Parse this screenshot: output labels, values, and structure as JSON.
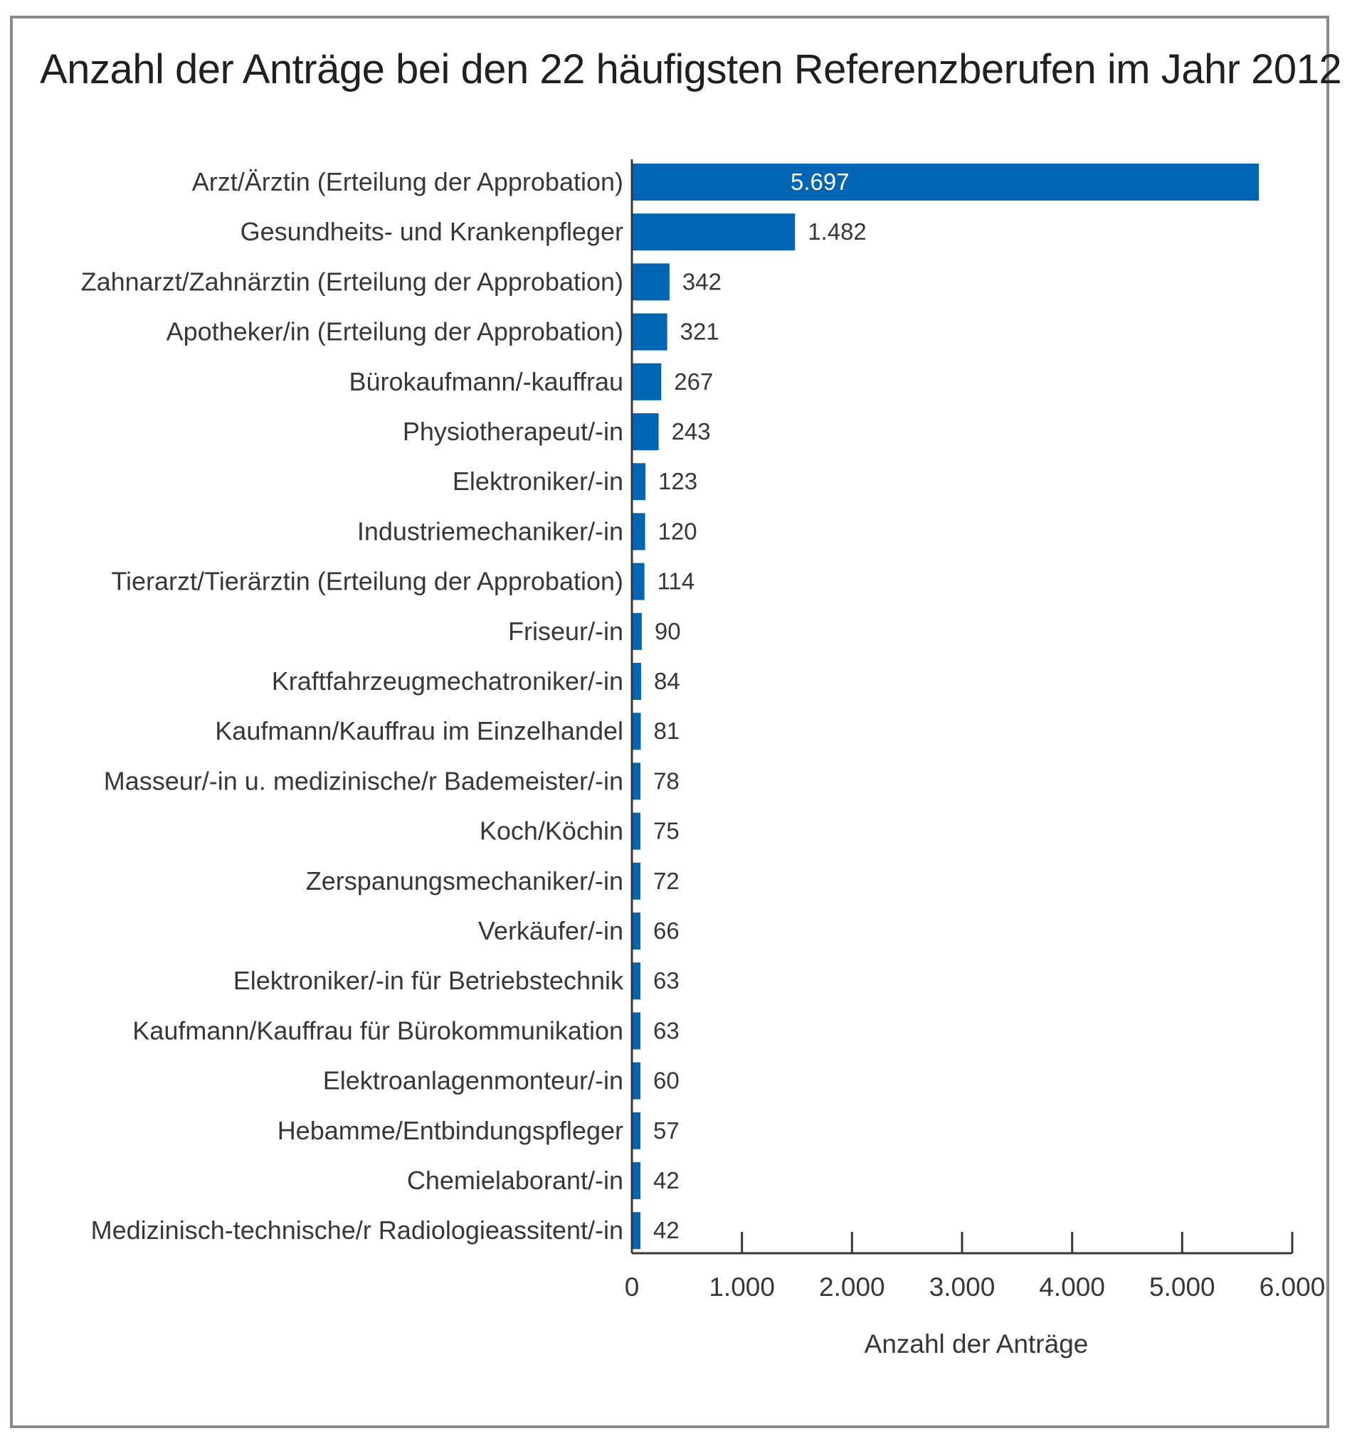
{
  "colors": {
    "bar": "#0066b3",
    "text": "#3a3536",
    "axis": "#3a3536",
    "frame": "#8a8a8a"
  },
  "chart_data": {
    "type": "bar",
    "orientation": "horizontal",
    "title": "Anzahl der Anträge bei den 22 häufigsten Referenzberufen im Jahr 2012",
    "xlabel": "Anzahl der Anträge",
    "ylabel": "",
    "xlim": [
      0,
      6000
    ],
    "ticks": [
      0,
      1000,
      2000,
      3000,
      4000,
      5000,
      6000
    ],
    "tick_labels": [
      "0",
      "1.000",
      "2.000",
      "3.000",
      "4.000",
      "5.000",
      "6.000"
    ],
    "grid": false,
    "categories": [
      "Arzt/Ärztin (Erteilung der Approbation)",
      "Gesundheits- und Krankenpfleger",
      "Zahnarzt/Zahnärztin (Erteilung der Approbation)",
      "Apotheker/in (Erteilung der Approbation)",
      "Bürokaufmann/-kauffrau",
      "Physiotherapeut/-in",
      "Elektroniker/-in",
      "Industriemechaniker/-in",
      "Tierarzt/Tierärztin (Erteilung der Approbation)",
      "Friseur/-in",
      "Kraftfahrzeugmechatroniker/-in",
      "Kaufmann/Kauffrau im Einzelhandel",
      "Masseur/-in u. medizinische/r Bademeister/-in",
      "Koch/Köchin",
      "Zerspanungsmechaniker/-in",
      "Verkäufer/-in",
      "Elektroniker/-in für Betriebstechnik",
      "Kaufmann/Kauffrau für Bürokommunikation",
      "Elektroanlagenmonteur/-in",
      "Hebamme/Entbindungspfleger",
      "Chemielaborant/-in",
      "Medizinisch-technische/r Radiologieassitent/-in"
    ],
    "values": [
      5697,
      1482,
      342,
      321,
      267,
      243,
      123,
      120,
      114,
      90,
      84,
      81,
      78,
      75,
      72,
      66,
      63,
      63,
      60,
      57,
      42,
      42
    ],
    "value_labels": [
      "5.697",
      "1.482",
      "342",
      "321",
      "267",
      "243",
      "123",
      "120",
      "114",
      "90",
      "84",
      "81",
      "78",
      "75",
      "72",
      "66",
      "63",
      "63",
      "60",
      "57",
      "42",
      "42"
    ]
  }
}
